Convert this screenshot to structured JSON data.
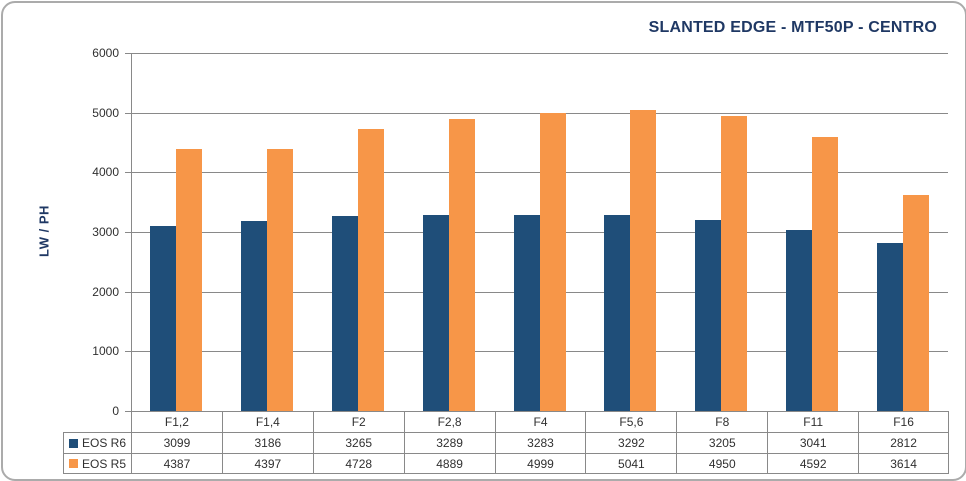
{
  "header": {
    "title": "SLANTED EDGE - MTF50P - CENTRO"
  },
  "chart_data": {
    "type": "bar",
    "title": "SLANTED EDGE - MTF50P - CENTRO",
    "xlabel": "",
    "ylabel": "LW / PH",
    "ylim": [
      0,
      6000
    ],
    "y_ticks": [
      0,
      1000,
      2000,
      3000,
      4000,
      5000,
      6000
    ],
    "grid": true,
    "legend_position": "table-left",
    "categories": [
      "F1,2",
      "F1,4",
      "F2",
      "F2,8",
      "F4",
      "F5,6",
      "F8",
      "F11",
      "F16"
    ],
    "series": [
      {
        "name": "EOS R6",
        "color": "#1F4E79",
        "values": [
          3099,
          3186,
          3265,
          3289,
          3283,
          3292,
          3205,
          3041,
          2812
        ]
      },
      {
        "name": "EOS R5",
        "color": "#F79648",
        "values": [
          4387,
          4397,
          4728,
          4889,
          4999,
          5041,
          4950,
          4592,
          3614
        ]
      }
    ]
  },
  "colors": {
    "title_navy": "#1F3864",
    "series_blue": "#1F4E79",
    "series_orange": "#F79648",
    "grid_gray": "#898989",
    "frame_gray": "#ABABAB"
  }
}
